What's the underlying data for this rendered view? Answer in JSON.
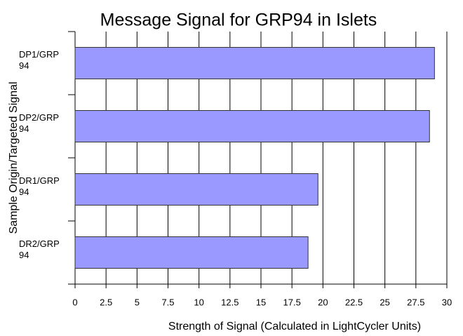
{
  "chart_data": {
    "type": "barh",
    "title": "Message Signal for GRP94 in Islets",
    "x_label": "Strength of Signal (Calculated in LightCycler Units)",
    "y_label": "Sample Origin/Targeted Signal",
    "categories": [
      "DP1/GRP94",
      "DP2/GRP94",
      "DR1/GRP94",
      "DR2/GRP94"
    ],
    "values": [
      29,
      28.6,
      19.6,
      18.8
    ],
    "color": "#9999ff",
    "xlim": [
      0,
      30
    ],
    "xticks": [
      0,
      2.5,
      5,
      7.5,
      10,
      12.5,
      15,
      17.5,
      20,
      22.5,
      25,
      27.5,
      30
    ],
    "grid": true
  }
}
